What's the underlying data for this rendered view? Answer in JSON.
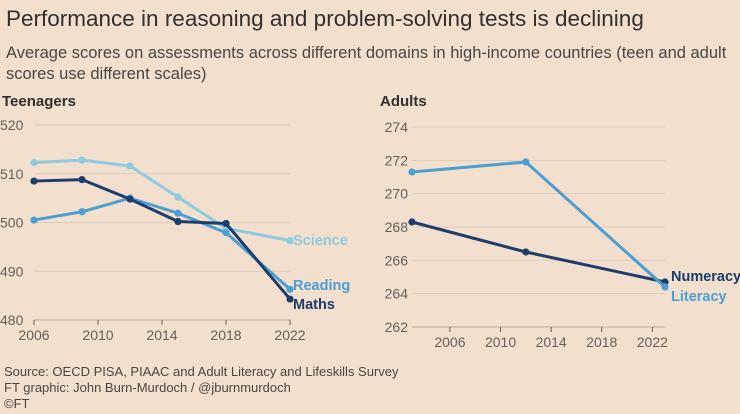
{
  "title": "Performance in reasoning and problem-solving tests is declining",
  "subtitle": "Average scores on assessments across different domains in high-income countries (teen and adult scores use different scales)",
  "footer": {
    "source": "Source: OECD PISA, PIAAC and Adult Literacy and Lifeskills Survey",
    "credit": "FT graphic: John Burn-Murdoch / @jburnmurdoch",
    "copyright": "©FT"
  },
  "colors": {
    "background": "#f2dfce",
    "grid": "#ddcdbe",
    "science": "#8ecbe0",
    "reading": "#4c9fd0",
    "maths": "#1e3d6b",
    "numeracy": "#1e3d6b",
    "literacy": "#4c9fd0"
  },
  "chart_data": [
    {
      "type": "line",
      "panel_title": "Teenagers",
      "xlim": [
        2006,
        2022
      ],
      "ylim": [
        480,
        520
      ],
      "xticks": [
        2006,
        2010,
        2014,
        2018,
        2022
      ],
      "yticks": [
        480,
        490,
        500,
        510,
        520
      ],
      "grid": true,
      "series": [
        {
          "name": "Science",
          "color": "#8ecbe0",
          "x": [
            2006,
            2009,
            2012,
            2015,
            2018,
            2022
          ],
          "values": [
            512.3,
            512.8,
            511.6,
            505.2,
            498.8,
            496.3
          ]
        },
        {
          "name": "Reading",
          "color": "#4c9fd0",
          "x": [
            2006,
            2009,
            2012,
            2015,
            2018,
            2022
          ],
          "values": [
            500.5,
            502.2,
            505.0,
            501.9,
            497.9,
            486.3
          ]
        },
        {
          "name": "Maths",
          "color": "#1e3d6b",
          "x": [
            2006,
            2009,
            2012,
            2015,
            2018,
            2022
          ],
          "values": [
            508.5,
            508.8,
            504.8,
            500.2,
            499.8,
            484.3
          ]
        }
      ]
    },
    {
      "type": "line",
      "panel_title": "Adults",
      "xlim": [
        2003,
        2023
      ],
      "ylim": [
        262,
        274
      ],
      "xticks": [
        2006,
        2010,
        2014,
        2018,
        2022
      ],
      "yticks": [
        262,
        264,
        266,
        268,
        270,
        272,
        274
      ],
      "grid": true,
      "series": [
        {
          "name": "Numeracy",
          "color": "#1e3d6b",
          "x": [
            2003,
            2012,
            2023
          ],
          "values": [
            268.3,
            266.5,
            264.7
          ]
        },
        {
          "name": "Literacy",
          "color": "#4c9fd0",
          "x": [
            2003,
            2012,
            2023
          ],
          "values": [
            271.3,
            271.9,
            264.4
          ]
        }
      ]
    }
  ]
}
